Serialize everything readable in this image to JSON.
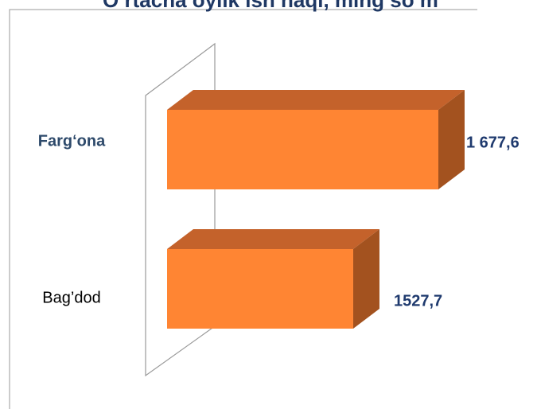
{
  "chart_data": {
    "type": "bar3d_horizontal",
    "title": "O‘rtacha oylik ish haqi, ming so‘m",
    "categories": [
      "Farg‘ona",
      "Bag’dod"
    ],
    "values": [
      1677.6,
      1527.7
    ],
    "value_labels": [
      "1 677,6",
      "1527,7"
    ],
    "color": "#ff8533",
    "xlim": [
      1200,
      1700
    ]
  }
}
